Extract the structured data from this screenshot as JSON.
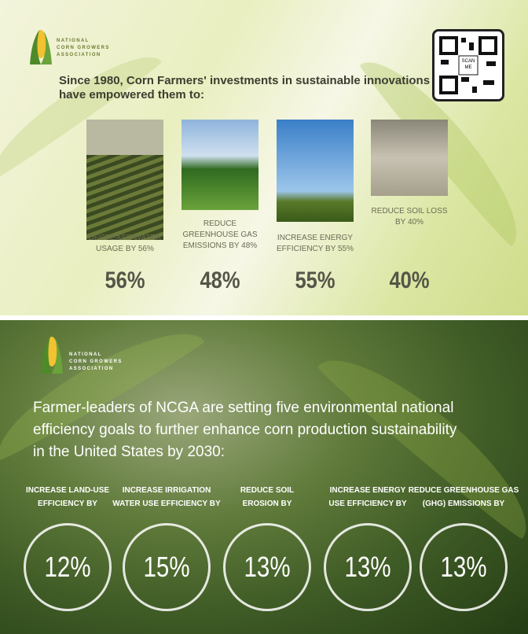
{
  "top_panel": {
    "logo": [
      "NATIONAL",
      "CORN GROWERS",
      "ASSOCIATION"
    ],
    "qr_label": [
      "SCAN",
      "ME"
    ],
    "heading": [
      "Since 1980, Corn Farmers' investments in sustainable innovations",
      "have empowered them to:"
    ],
    "items": [
      {
        "caption": [
          "DECREASE WATER",
          "USAGE BY 56%"
        ],
        "value": "56%"
      },
      {
        "caption": [
          "REDUCE",
          "GREENHOUSE GAS",
          "EMISSIONS BY 48%"
        ],
        "value": "48%"
      },
      {
        "caption": [
          "INCREASE ENERGY",
          "EFFICIENCY BY 55%"
        ],
        "value": "55%"
      },
      {
        "caption": [
          "REDUCE SOIL LOSS",
          "BY 40%"
        ],
        "value": "40%"
      }
    ]
  },
  "bottom_panel": {
    "logo": [
      "NATIONAL",
      "CORN GROWERS",
      "ASSOCIATION"
    ],
    "heading": [
      "Farmer-leaders of NCGA are setting five environmental national",
      "efficiency goals to further enhance corn production sustainability",
      "in the United States by 2030:"
    ],
    "goals": [
      {
        "label": [
          "INCREASE LAND-USE",
          "EFFICIENCY BY"
        ],
        "value": "12%"
      },
      {
        "label": [
          "INCREASE IRRIGATION",
          "WATER USE EFFICIENCY BY"
        ],
        "value": "15%"
      },
      {
        "label": [
          "REDUCE SOIL",
          "EROSION BY"
        ],
        "value": "13%"
      },
      {
        "label": [
          "INCREASE ENERGY",
          "USE EFFICIENCY BY"
        ],
        "value": "13%"
      },
      {
        "label": [
          "REDUCE GREENHOUSE GAS",
          "(GHG) EMISSIONS BY"
        ],
        "value": "13%"
      }
    ]
  }
}
